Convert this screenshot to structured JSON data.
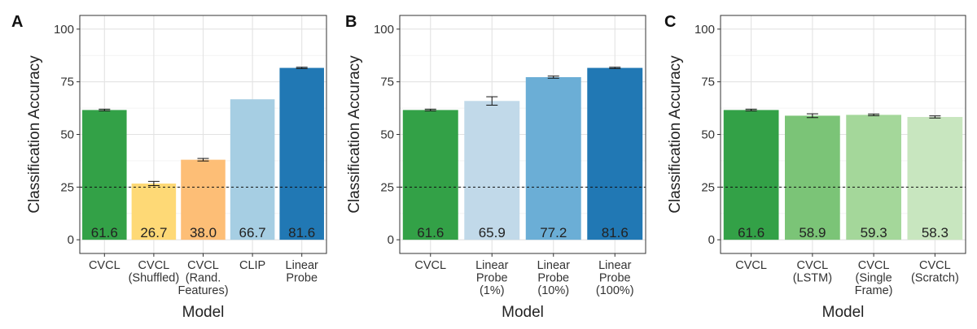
{
  "chart_data": [
    {
      "panel": "A",
      "type": "bar",
      "xlabel": "Model",
      "ylabel": "Classification Accuracy",
      "ylim": [
        0,
        100
      ],
      "yticks": [
        0,
        25,
        50,
        75,
        100
      ],
      "reference_line": 25,
      "grid": true,
      "categories": [
        "CVCL",
        "CVCL\n(Shuffled)",
        "CVCL\n(Rand.\nFeatures)",
        "CLIP",
        "Linear\nProbe"
      ],
      "values": [
        61.6,
        26.7,
        38.0,
        66.7,
        81.6
      ],
      "value_labels": [
        "61.6",
        "26.7",
        "38.0",
        "66.7",
        "81.6"
      ],
      "errors": [
        0.4,
        1.0,
        0.6,
        null,
        0.3
      ],
      "colors": [
        "#33a147",
        "#fed976",
        "#fdbe76",
        "#a6cee3",
        "#2178b4"
      ]
    },
    {
      "panel": "B",
      "type": "bar",
      "xlabel": "Model",
      "ylabel": "Classification Accuracy",
      "ylim": [
        0,
        100
      ],
      "yticks": [
        0,
        25,
        50,
        75,
        100
      ],
      "reference_line": 25,
      "grid": true,
      "categories": [
        "CVCL",
        "Linear\nProbe\n(1%)",
        "Linear\nProbe\n(10%)",
        "Linear\nProbe\n(100%)"
      ],
      "values": [
        61.6,
        65.9,
        77.2,
        81.6
      ],
      "value_labels": [
        "61.6",
        "65.9",
        "77.2",
        "81.6"
      ],
      "errors": [
        0.4,
        2.0,
        0.5,
        0.3
      ],
      "colors": [
        "#33a147",
        "#c1d9e9",
        "#6baed6",
        "#2178b4"
      ]
    },
    {
      "panel": "C",
      "type": "bar",
      "xlabel": "Model",
      "ylabel": "Classification Accuracy",
      "ylim": [
        0,
        100
      ],
      "yticks": [
        0,
        25,
        50,
        75,
        100
      ],
      "reference_line": 25,
      "grid": true,
      "categories": [
        "CVCL",
        "CVCL\n(LSTM)",
        "CVCL\n(Single\nFrame)",
        "CVCL\n(Scratch)"
      ],
      "values": [
        61.6,
        58.9,
        59.3,
        58.3
      ],
      "value_labels": [
        "61.6",
        "58.9",
        "59.3",
        "58.3"
      ],
      "errors": [
        0.4,
        0.9,
        0.4,
        0.5
      ],
      "colors": [
        "#33a147",
        "#7bc477",
        "#a4d79a",
        "#c8e6bf"
      ]
    }
  ]
}
